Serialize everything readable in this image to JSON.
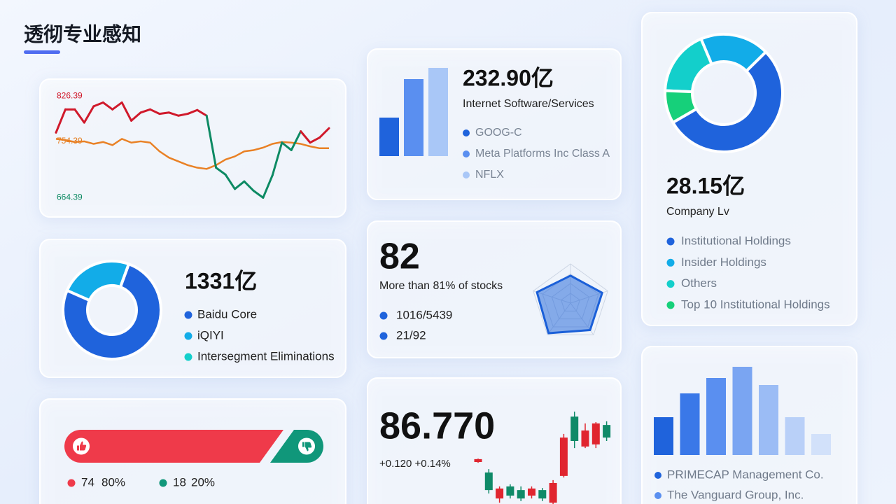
{
  "header": {
    "title": "透彻专业感知"
  },
  "line_card": {
    "type": "line",
    "ylim": [
      650,
      840
    ],
    "yticks": [
      826.39,
      754.39,
      664.39
    ],
    "ytick_colors": [
      "#d0192b",
      "#e57d1f",
      "#0d8a63"
    ],
    "series": [
      {
        "color": "#d0192b",
        "down_color": "#0d8a63",
        "values": [
          768,
          805,
          805,
          784,
          810,
          816,
          805,
          816,
          787,
          800,
          805,
          798,
          800,
          795,
          798,
          804,
          795,
          712,
          701,
          678,
          690,
          675,
          664,
          700,
          752,
          740,
          770,
          752,
          760,
          775
        ]
      },
      {
        "color": "#e98125",
        "values": [
          758,
          756,
          753,
          754,
          750,
          753,
          748,
          758,
          752,
          754,
          752,
          738,
          728,
          722,
          716,
          712,
          710,
          716,
          725,
          730,
          738,
          740,
          744,
          750,
          753,
          752,
          750,
          746,
          743,
          743
        ]
      }
    ]
  },
  "overview_card": {
    "type": "bar",
    "value_text": "232.90亿",
    "label": "Internet Software/Services",
    "categories": [
      "GOOG-C",
      "Meta Platforms Inc Class A",
      "NFLX"
    ],
    "values": [
      55,
      110,
      126
    ],
    "colors": [
      "#1f63dc",
      "#5a8ff0",
      "#a9c7f7"
    ],
    "ylim": [
      0,
      130
    ]
  },
  "holders_card": {
    "type": "donut",
    "value_text": "28.15亿",
    "label": "Company Lv",
    "categories": [
      "Institutional Holdings",
      "Insider Holdings",
      "Others",
      "Top 10 Institutional Holdings"
    ],
    "values": [
      54,
      19,
      18,
      9
    ],
    "colors": [
      "#1f63dc",
      "#12ace8",
      "#13cfcb",
      "#16d07a"
    ]
  },
  "revenue_card": {
    "type": "donut",
    "value_text": "1331亿",
    "categories": [
      "Baidu Core",
      "iQIYI",
      "Intersegment Eliminations"
    ],
    "values": [
      76,
      24,
      0
    ],
    "colors": [
      "#1f63dc",
      "#12ace8",
      "#13cfcb"
    ]
  },
  "score_card": {
    "type": "radar",
    "value_text": 82,
    "label": "More than 81% of stocks",
    "items": [
      "1016/5439",
      "21/92"
    ],
    "item_color": "#1f63dc",
    "values": [
      70,
      85,
      85,
      95,
      90
    ],
    "rlim": [
      0,
      100
    ],
    "color": "#1a5fd8"
  },
  "sentiment_card": {
    "type": "ratio",
    "counts": [
      74,
      18
    ],
    "values": [
      80,
      20
    ],
    "value_labels": [
      "80%",
      "20%"
    ],
    "colors": [
      "#ef3a4a",
      "#10977a"
    ]
  },
  "quote_card": {
    "type": "candlestick",
    "price": "86.770",
    "change": "+0.120 +0.14%",
    "open": [
      85.6,
      85.2,
      84.21,
      84.67,
      84.53,
      84.32,
      84.53,
      84.05,
      85.07,
      87.33,
      86.19,
      86.27,
      87.01
    ],
    "close": [
      85.71,
      84.53,
      84.59,
      84.32,
      84.21,
      84.59,
      84.21,
      84.8,
      86.53,
      86.4,
      86.8,
      87.07,
      86.53
    ],
    "high": [
      85.73,
      85.33,
      84.67,
      84.75,
      84.67,
      84.67,
      84.61,
      84.91,
      86.67,
      87.52,
      87.07,
      87.12,
      87.15
    ],
    "low": [
      85.57,
      84.4,
      84.05,
      84.21,
      84.11,
      84.21,
      84.11,
      84.0,
      85.01,
      86.13,
      86.13,
      86.13,
      86.4
    ],
    "ylim": [
      84,
      87.6
    ],
    "up_color": "#e0252f",
    "down_color": "#0f8a68"
  },
  "institutions_card": {
    "type": "bar",
    "values": [
      54,
      88,
      110,
      126,
      100,
      54,
      30
    ],
    "colors": [
      "#1f63dc",
      "#3a78e8",
      "#5a8ff0",
      "#7aa5f2",
      "#9bbcf5",
      "#b9d0f8",
      "#d2e1fa"
    ],
    "ylim": [
      0,
      130
    ],
    "legend": [
      {
        "name": "PRIMECAP Management Co.",
        "color": "#1f63dc"
      },
      {
        "name": "The Vanguard Group, Inc.",
        "color": "#5a8ff0"
      }
    ]
  }
}
